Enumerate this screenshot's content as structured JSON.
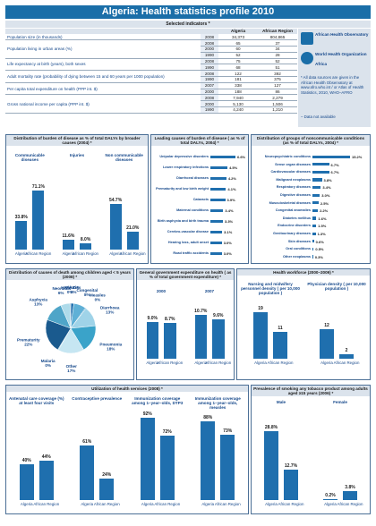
{
  "title": "Algeria: Health statistics profile 2010",
  "indicators": {
    "heading": "Selected indicators *",
    "col_algeria": "Algeria",
    "col_africa": "African Region",
    "rows": [
      {
        "label": "Population size (in thousands)",
        "cells": [
          [
            "2008",
            "34,373",
            "804,865"
          ]
        ]
      },
      {
        "label": "Population living in urban areas (%)",
        "cells": [
          [
            "2008",
            "65",
            "37"
          ],
          [
            "2000",
            "60",
            "34"
          ],
          [
            "1990",
            "52",
            "28"
          ]
        ]
      },
      {
        "label": "Life expectancy at birth (years), both sexes",
        "cells": [
          [
            "2008",
            "75",
            "52"
          ],
          [
            "1990",
            "68",
            "51"
          ]
        ]
      },
      {
        "label": "Adult mortality rate (probability of dying between 15 and 60 years per 1000 population)",
        "cells": [
          [
            "2008",
            "122",
            "392"
          ],
          [
            "1990",
            "181",
            "375"
          ]
        ]
      },
      {
        "label": "Per capita total expenditure on health (PPP int. $)",
        "cells": [
          [
            "2007",
            "338",
            "127"
          ],
          [
            "2000",
            "188",
            "86"
          ]
        ]
      },
      {
        "label": "Gross national income per capita (PPP int. $)",
        "cells": [
          [
            "2008",
            "7,940",
            "2,279"
          ],
          [
            "2000",
            "5,130",
            "1,506"
          ],
          [
            "1990",
            "4,240",
            "1,210"
          ]
        ]
      }
    ]
  },
  "sidebar": {
    "logo1": "African Health Observatory",
    "logo2": "World Health Organization",
    "logo2_sub": "Africa",
    "note": "* All data sources are given in the African Health Observatory at www.afro.who.int / or Atlas of Health Statistics, 2010, WHO–AFRO",
    "nodata": "– Data not available"
  },
  "burden": {
    "title": "Distribution of burden of disease as % of total DALYs by broader causes (2004) *",
    "groups": [
      "Communicable diseases",
      "Injuries",
      "Non communicable diseases"
    ],
    "regions": [
      "Algeria",
      "African Region"
    ],
    "values": [
      [
        33.8,
        71.1
      ],
      [
        11.6,
        8.0
      ],
      [
        54.7,
        21.0
      ]
    ],
    "labels": [
      [
        "33.8%",
        "71.1%"
      ],
      [
        "11.6%",
        "8.0%"
      ],
      [
        "54.7%",
        "21.0%"
      ]
    ]
  },
  "leading": {
    "title": "Leading causes of burden of disease ( as % of total DALYs, 2004) *",
    "items": [
      [
        "Unipolar depressive disorders",
        6.6,
        "6.6%"
      ],
      [
        "Lower respiratory infections",
        4.5,
        "4.5%"
      ],
      [
        "Diarrhoeal diseases",
        4.2,
        "4.2%"
      ],
      [
        "Prematurity and low birth weight",
        4.1,
        "4.1%"
      ],
      [
        "Cataracts",
        3.9,
        "3.9%"
      ],
      [
        "Maternal conditions",
        3.4,
        "3.4%"
      ],
      [
        "Birth asphyxia and birth trauma",
        3.3,
        "3.3%"
      ],
      [
        "Cerebro-vascular disease",
        3.1,
        "3.1%"
      ],
      [
        "Hearing loss, adult onset",
        3.0,
        "3.0%"
      ],
      [
        "Road traffic accidents",
        3.0,
        "3.0%"
      ]
    ]
  },
  "ncd": {
    "title": "Distribution of groups of noncommunicable conditions (as % of total DALYs, 2004) *",
    "items": [
      [
        "Neuropsychiatric conditions",
        15.2,
        "15.2%"
      ],
      [
        "Sense organ diseases",
        6.7,
        "6.7%"
      ],
      [
        "Cardiovascular diseases",
        6.7,
        "6.7%"
      ],
      [
        "Malignant neoplasms",
        3.8,
        "3.8%"
      ],
      [
        "Respiratory diseases",
        3.4,
        "3.4%"
      ],
      [
        "Digestive diseases",
        3.0,
        "3.0%"
      ],
      [
        "Musculoskeletal diseases",
        2.5,
        "2.5%"
      ],
      [
        "Congenital anomalies",
        2.2,
        "2.2%"
      ],
      [
        "Diabetes mellitus",
        1.6,
        "1.6%"
      ],
      [
        "Endocrine disorders",
        1.5,
        "1.5%"
      ],
      [
        "Genitourinary diseases",
        1.3,
        "1.3%"
      ],
      [
        "Skin diseases",
        0.6,
        "0.6%"
      ],
      [
        "Oral conditions",
        0.5,
        "0.5%"
      ],
      [
        "Other neoplasms",
        0.3,
        "0.3%"
      ]
    ]
  },
  "deaths": {
    "title": "Distribution of causes of death among children aged < 5 years (2008) *",
    "slices": [
      [
        "Injuries",
        "2%",
        2
      ],
      [
        "Congenital",
        "8%",
        8
      ],
      [
        "Measles",
        "0%",
        0.5
      ],
      [
        "Diarrhoea",
        "13%",
        13
      ],
      [
        "Pneumonia",
        "18%",
        18
      ],
      [
        "Other",
        "17%",
        17
      ],
      [
        "Malaria",
        "0%",
        0.5
      ],
      [
        "Prematurity",
        "22%",
        22
      ],
      [
        "Asphyxia",
        "13%",
        13
      ],
      [
        "Neonatal",
        "6%",
        6
      ],
      [
        "HIV/AIDS",
        "0%",
        0.5
      ]
    ],
    "colors": [
      "#1f6fae",
      "#5fb0d6",
      "#2a8bc4",
      "#9fd3e8",
      "#3aa3c9",
      "#c6e6f2",
      "#7fc3e0",
      "#1a5a8e",
      "#4fa5c8",
      "#aedbea",
      "#2f7fb8"
    ]
  },
  "govexp": {
    "title": "General government expenditure on health ( as % of total government expenditure) *",
    "years": [
      "2000",
      "2007"
    ],
    "values": [
      [
        9.0,
        8.7
      ],
      [
        10.7,
        9.6
      ]
    ],
    "labels": [
      [
        "9.0%",
        "8.7%"
      ],
      [
        "10.7%",
        "9.6%"
      ]
    ],
    "regions": [
      "Algeria",
      "African Region"
    ]
  },
  "workforce": {
    "title": "Health workforce (2000–2009) *",
    "groups": [
      "Nursing and midwifery personnel density ( per 10,000 population )",
      "Physician density ( per 10,000 population )"
    ],
    "values": [
      [
        19,
        11
      ],
      [
        12,
        2
      ]
    ],
    "labels": [
      [
        "19",
        "11"
      ],
      [
        "12",
        "2"
      ]
    ],
    "regions": [
      "Algeria",
      "African Region"
    ]
  },
  "utilization": {
    "title": "Utilization of health services (2008) *",
    "groups": [
      "Antenatal care coverage (%) at least four visits",
      "Contraceptive prevalence",
      "Immunization coverage among 1–year–olds, DTP3",
      "Immunization coverage among 1–year–olds, measles"
    ],
    "values": [
      [
        40,
        44
      ],
      [
        61,
        24
      ],
      [
        92,
        72
      ],
      [
        88,
        73
      ]
    ],
    "labels": [
      [
        "40%",
        "44%"
      ],
      [
        "61%",
        "24%"
      ],
      [
        "92%",
        "72%"
      ],
      [
        "88%",
        "73%"
      ]
    ],
    "regions": [
      "Algeria",
      "African Region"
    ]
  },
  "smoking": {
    "title": "Prevalence of smoking any tobacco product among adults aged ≥15 years (2006) *",
    "groups": [
      "Male",
      "Female"
    ],
    "values": [
      [
        28.8,
        12.7
      ],
      [
        0.2,
        3.8
      ]
    ],
    "labels": [
      [
        "28.8%",
        "12.7%"
      ],
      [
        "0.2%",
        "3.8%"
      ]
    ],
    "regions": [
      "Algeria",
      "African Region"
    ]
  }
}
